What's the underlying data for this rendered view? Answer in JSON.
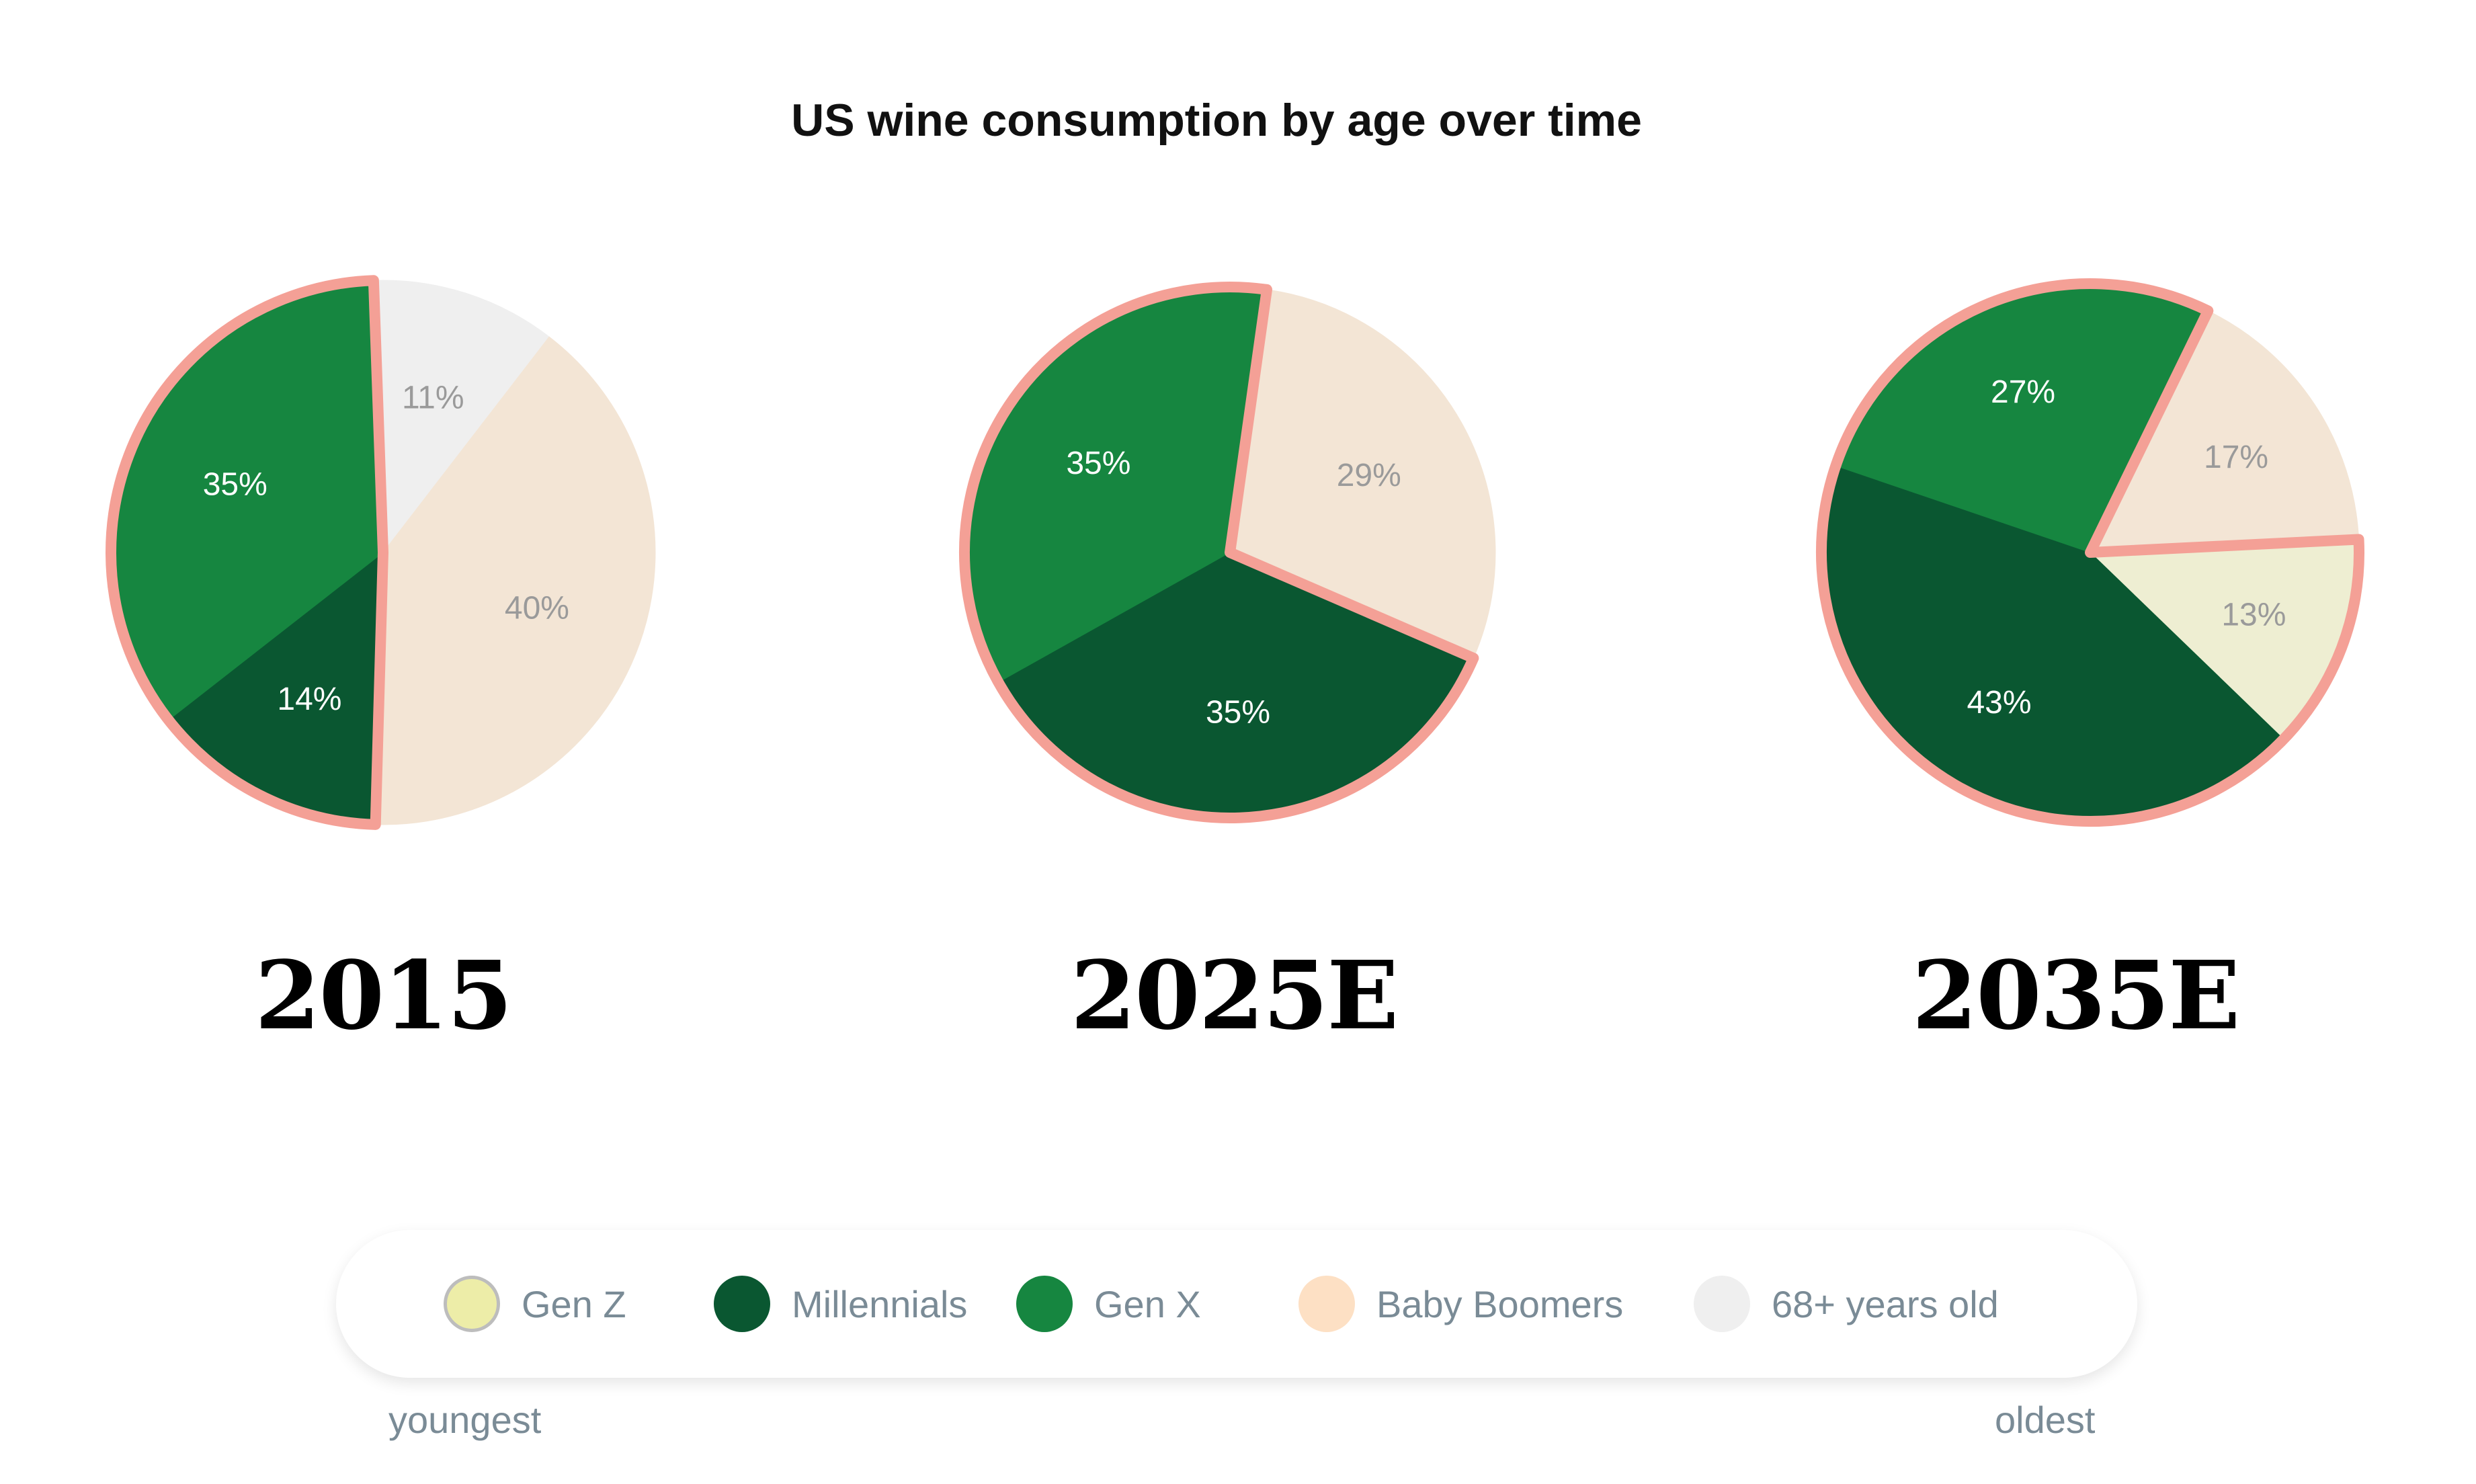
{
  "chart_data": {
    "type": "pie",
    "title": "US wine consumption by age over time",
    "series_names": [
      "Gen Z",
      "Millennials",
      "Gen X",
      "Baby Boomers",
      "68+ years old"
    ],
    "colors": {
      "Gen Z": "#eeeed2",
      "Millennials": "#0a5731",
      "Gen X": "#168640",
      "Baby Boomers": "#f3e5d5",
      "68+ years old": "#efefef",
      "highlight": "#f4a096"
    },
    "charts": [
      {
        "year": "2015",
        "slices": [
          {
            "name": "68+ years old",
            "value": 11,
            "label": "11%"
          },
          {
            "name": "Baby Boomers",
            "value": 40,
            "label": "40%"
          },
          {
            "name": "Millennials",
            "value": 14,
            "label": "14%"
          },
          {
            "name": "Gen X",
            "value": 35,
            "label": "35%"
          }
        ],
        "highlighted": [
          "Millennials",
          "Gen X"
        ]
      },
      {
        "year": "2025E",
        "slices": [
          {
            "name": "Baby Boomers",
            "value": 29,
            "label": "29%"
          },
          {
            "name": "Millennials",
            "value": 35,
            "label": "35%"
          },
          {
            "name": "Gen X",
            "value": 35,
            "label": "35%"
          }
        ],
        "highlighted": [
          "Millennials",
          "Gen X"
        ]
      },
      {
        "year": "2035E",
        "slices": [
          {
            "name": "Baby Boomers",
            "value": 17,
            "label": "17%"
          },
          {
            "name": "Gen Z",
            "value": 13,
            "label": "13%"
          },
          {
            "name": "Millennials",
            "value": 43,
            "label": "43%"
          },
          {
            "name": "Gen X",
            "value": 27,
            "label": "27%"
          }
        ],
        "highlighted": [
          "Gen Z",
          "Millennials",
          "Gen X"
        ]
      }
    ]
  },
  "legend": {
    "items": [
      {
        "label": "Gen Z",
        "color": "#ededa8",
        "border": "#bdbdbd"
      },
      {
        "label": "Millennials",
        "color": "#0a5731"
      },
      {
        "label": "Gen X",
        "color": "#168640"
      },
      {
        "label": "Baby Boomers",
        "color": "#fde0c4"
      },
      {
        "label": "68+ years old",
        "color": "#efefef"
      }
    ],
    "youngest": "youngest",
    "oldest": "oldest"
  }
}
